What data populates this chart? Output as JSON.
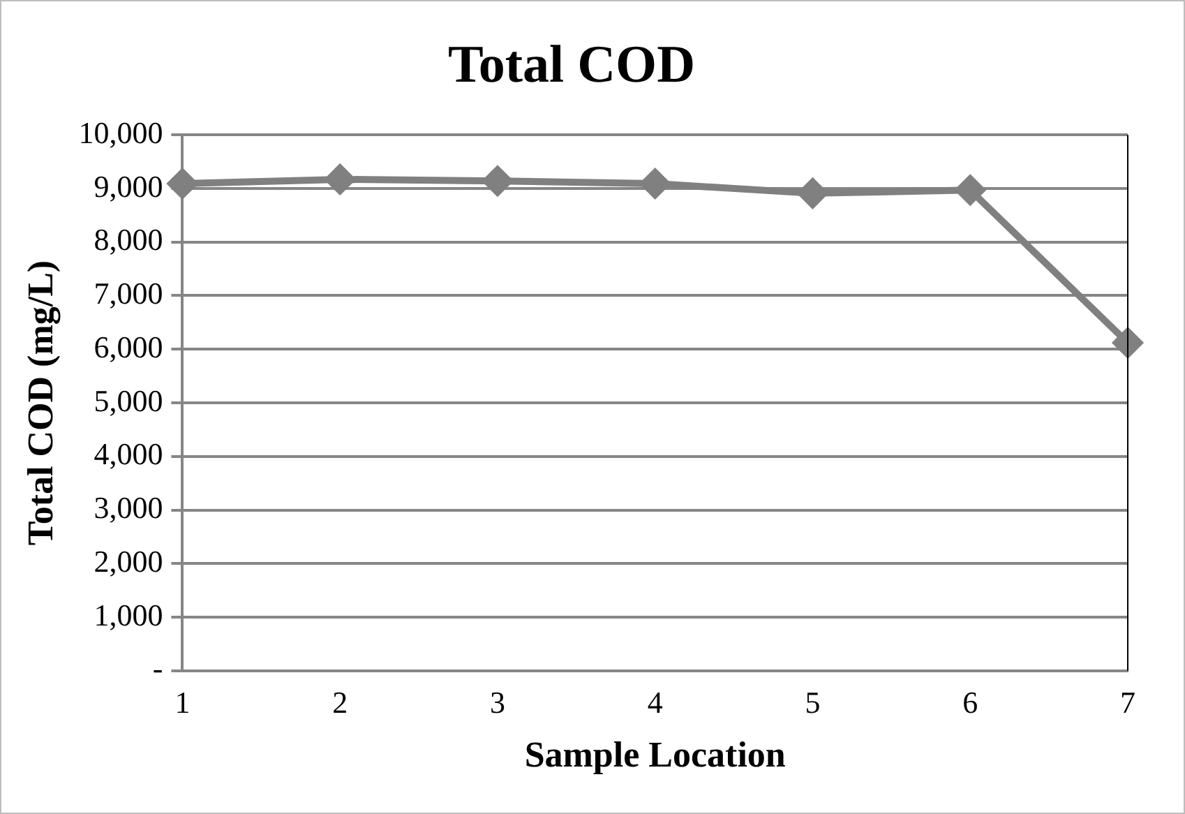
{
  "chart_data": {
    "type": "line",
    "title": "Total COD",
    "xlabel": "Sample Location",
    "ylabel": "Total COD (mg/L)",
    "categories": [
      "1",
      "2",
      "3",
      "4",
      "5",
      "6",
      "7"
    ],
    "series": [
      {
        "color": "#808080",
        "values": [
          9090,
          9170,
          9140,
          9090,
          8910,
          8970,
          6120
        ]
      }
    ],
    "ylim": [
      0,
      10000
    ],
    "yticks": [
      {
        "value": 0,
        "label": "-"
      },
      {
        "value": 1000,
        "label": "1,000"
      },
      {
        "value": 2000,
        "label": "2,000"
      },
      {
        "value": 3000,
        "label": "3,000"
      },
      {
        "value": 4000,
        "label": "4,000"
      },
      {
        "value": 5000,
        "label": "5,000"
      },
      {
        "value": 6000,
        "label": "6,000"
      },
      {
        "value": 7000,
        "label": "7,000"
      },
      {
        "value": 8000,
        "label": "8,000"
      },
      {
        "value": 9000,
        "label": "9,000"
      },
      {
        "value": 10000,
        "label": "10,000"
      }
    ],
    "grid": "y",
    "legend": false,
    "marker": "diamond",
    "line_style": "solid"
  }
}
